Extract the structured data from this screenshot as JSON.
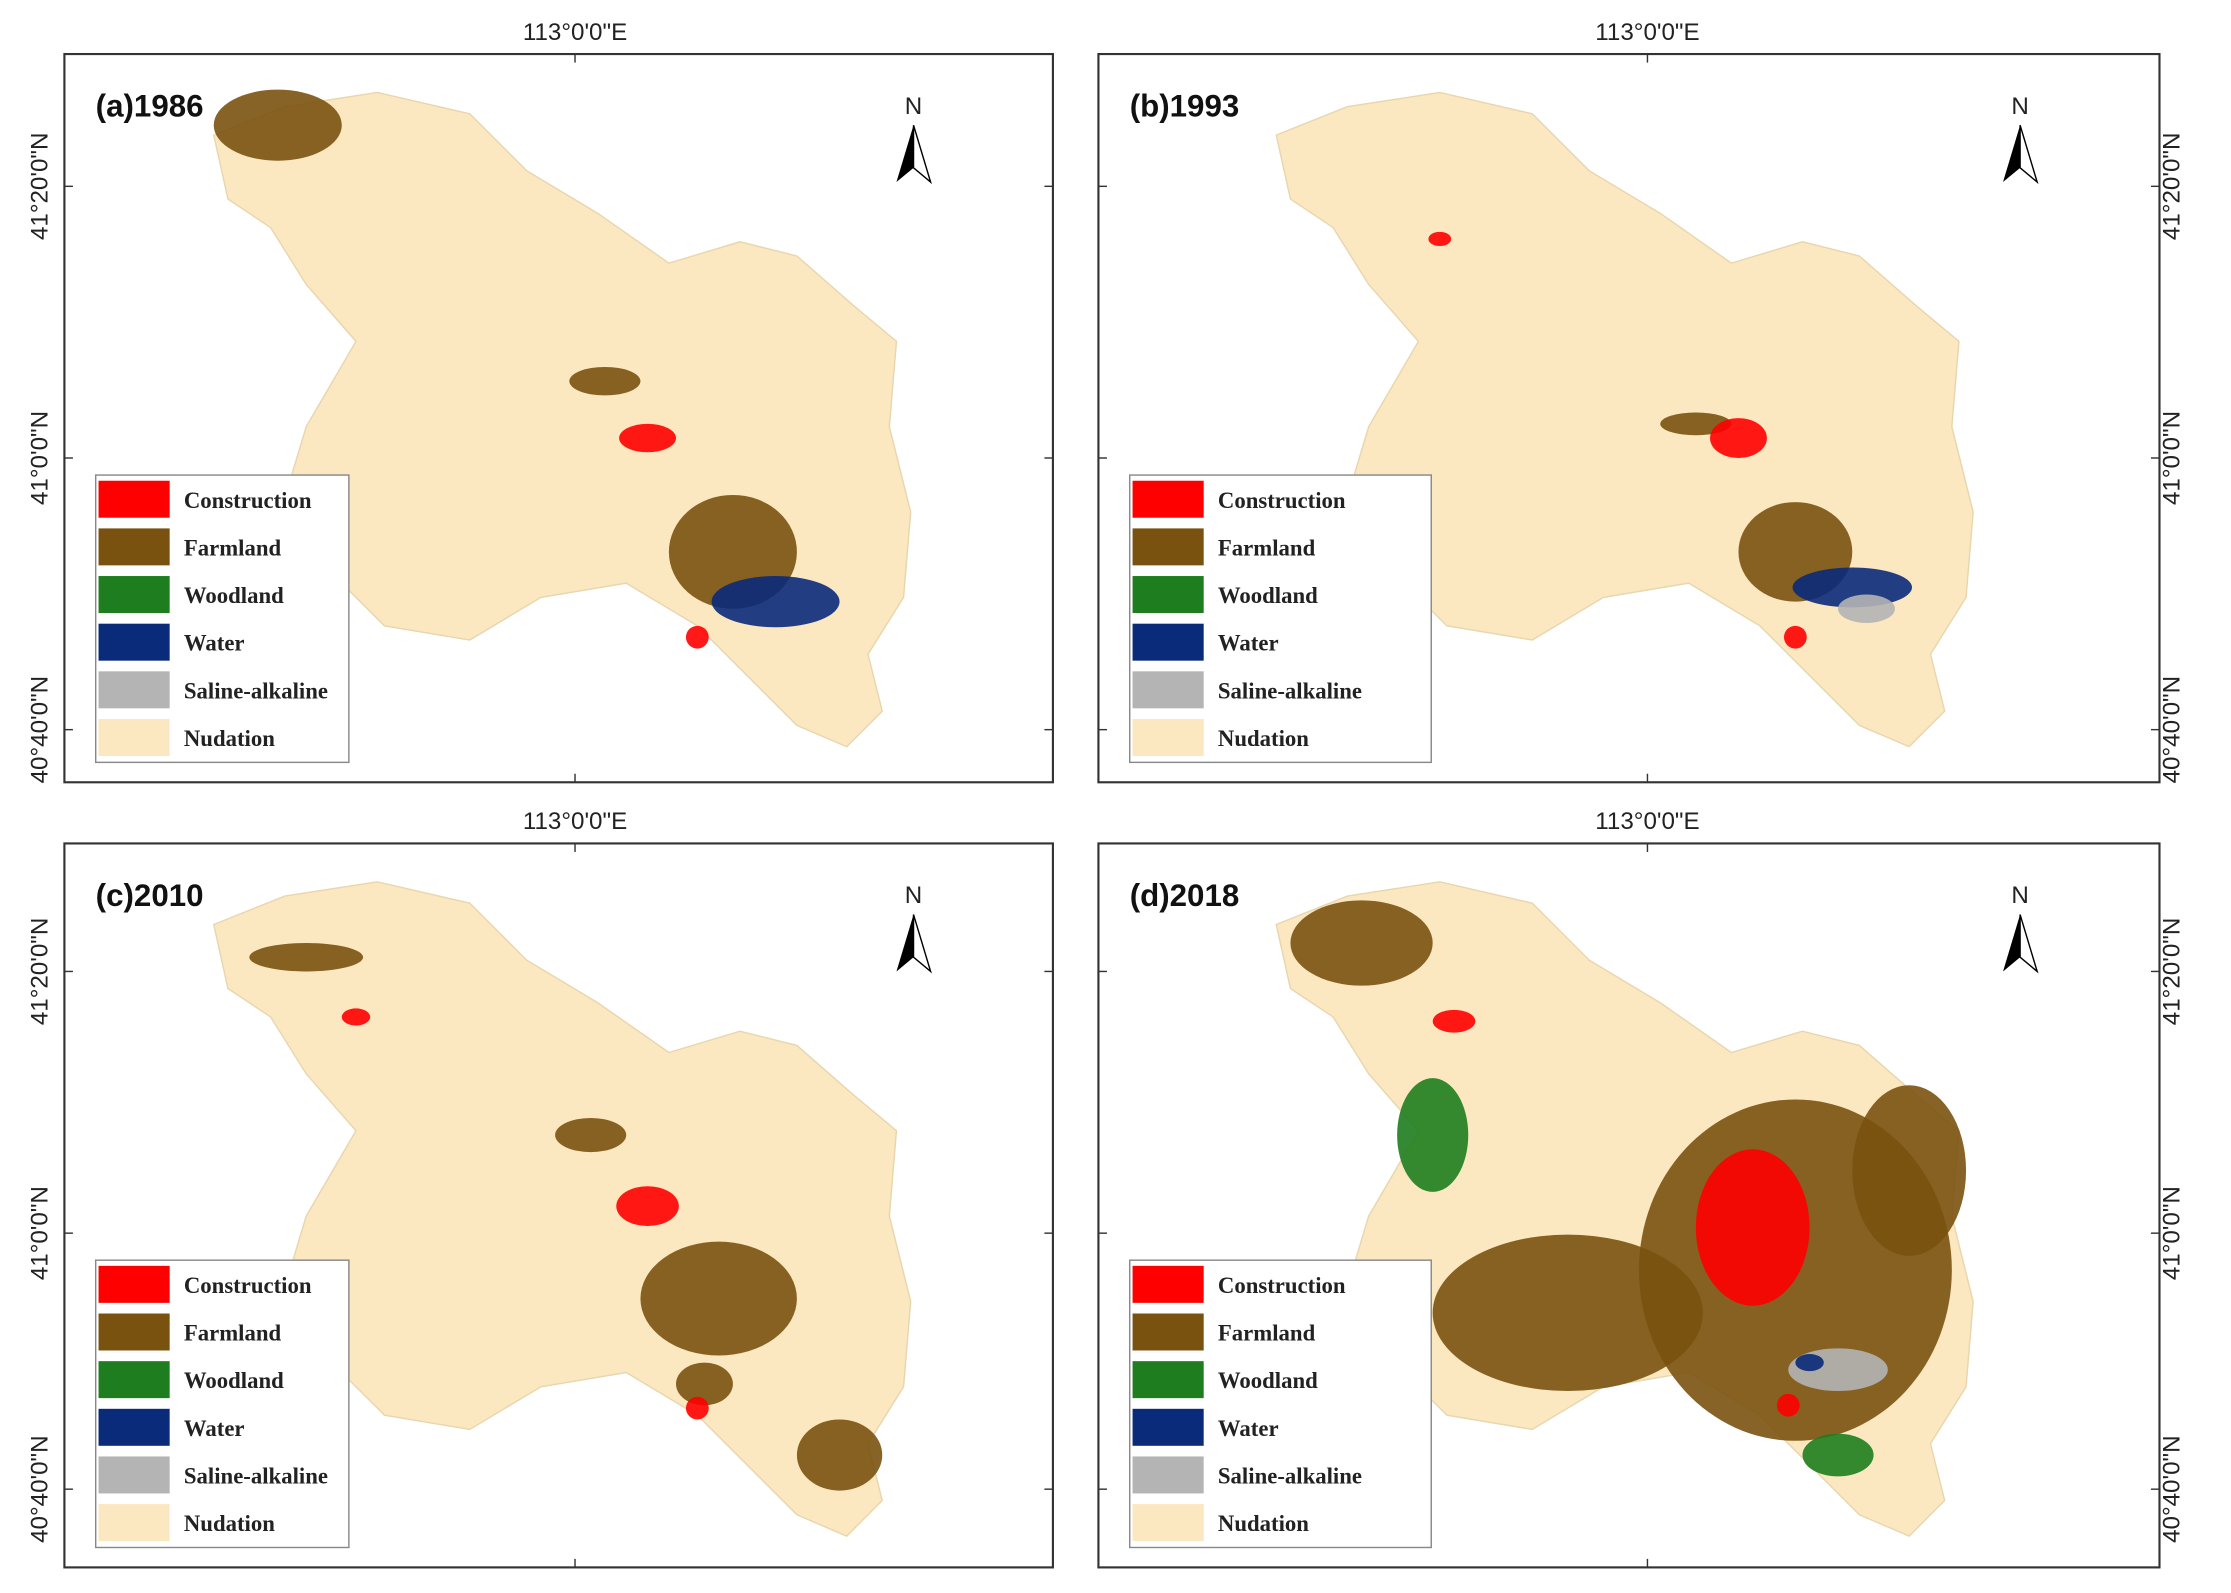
{
  "panels": [
    {
      "title": "(a)1986",
      "x_label": "113°0'0\"E",
      "lat_labels": [
        "41°20'0\"N",
        "41°0'0\"N",
        "40°40'0\"N"
      ],
      "north": "N"
    },
    {
      "title": "(b)1993",
      "x_label": "113°0'0\"E",
      "lat_labels": [
        "41°20'0\"N",
        "41°0'0\"N",
        "40°40'0\"N"
      ],
      "north": "N"
    },
    {
      "title": "(c)2010",
      "x_label": "113°0'0\"E",
      "lat_labels": [
        "41°20'0\"N",
        "41°0'0\"N",
        "40°40'0\"N"
      ],
      "north": "N"
    },
    {
      "title": "(d)2018",
      "x_label": "113°0'0\"E",
      "lat_labels": [
        "41°20'0\"N",
        "41°0'0\"N",
        "40°40'0\"N"
      ],
      "north": "N"
    }
  ],
  "legend": [
    {
      "name": "Construction",
      "color": "#ff0000"
    },
    {
      "name": "Farmland",
      "color": "#7a5210"
    },
    {
      "name": "Woodland",
      "color": "#1e7d1e"
    },
    {
      "name": "Water",
      "color": "#0a2a7a"
    },
    {
      "name": "Saline-alkaline",
      "color": "#b4b4b4"
    },
    {
      "name": "Nudation",
      "color": "#fbe7c0"
    }
  ]
}
